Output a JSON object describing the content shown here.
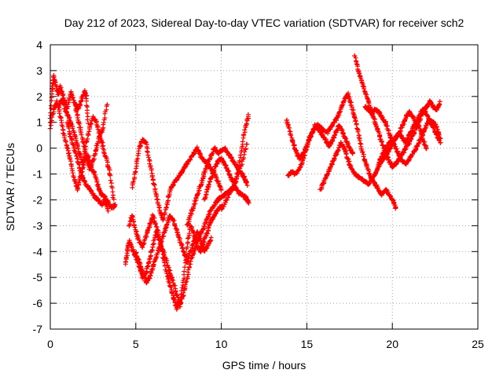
{
  "chart_data": {
    "type": "scatter",
    "title": "Day 212 of 2023, Sidereal Day-to-day VTEC variation (SDTVAR) for receiver sch2",
    "xlabel": "GPS time / hours",
    "ylabel": "SDTVAR / TECUs",
    "xlim": [
      0,
      25
    ],
    "ylim": [
      -7,
      4
    ],
    "xticks": [
      0,
      5,
      10,
      15,
      20,
      25
    ],
    "yticks": [
      -7,
      -6,
      -5,
      -4,
      -3,
      -2,
      -1,
      0,
      1,
      2,
      3,
      4
    ],
    "grid": true,
    "marker": "+",
    "color": "#ff0000",
    "series": [
      {
        "x": [
          0.0,
          0.1,
          0.2,
          0.3,
          0.45,
          0.6,
          0.8,
          1.0,
          1.2,
          1.4,
          1.6,
          1.8,
          2.0,
          2.1,
          2.2
        ],
        "y": [
          1.0,
          2.2,
          2.8,
          2.5,
          2.1,
          2.4,
          1.9,
          1.5,
          2.2,
          1.8,
          1.5,
          1.8,
          2.2,
          2.0,
          1.0
        ]
      },
      {
        "x": [
          0.0,
          0.2,
          0.4,
          0.6,
          0.8,
          1.0,
          1.2,
          1.4,
          1.6,
          1.8,
          2.0,
          2.2,
          2.4,
          2.6,
          2.8,
          3.0,
          3.2,
          3.4,
          3.6,
          3.8
        ],
        "y": [
          0.8,
          1.5,
          1.8,
          1.2,
          0.5,
          0.0,
          -0.5,
          -1.2,
          -1.6,
          -1.0,
          -0.5,
          -0.3,
          -0.8,
          -1.0,
          -1.5,
          -1.8,
          -1.9,
          -2.1,
          -2.3,
          -2.2
        ]
      },
      {
        "x": [
          0.5,
          0.7,
          0.9,
          1.1,
          1.3,
          1.5,
          1.7,
          1.9,
          2.1,
          2.3,
          2.5,
          2.7,
          2.9,
          3.1,
          3.3,
          3.5,
          3.7
        ],
        "y": [
          1.6,
          1.9,
          1.4,
          1.2,
          0.8,
          0.3,
          -0.2,
          -0.6,
          0.2,
          0.8,
          1.2,
          1.0,
          0.5,
          0.0,
          -0.5,
          -1.0,
          -2.0
        ]
      },
      {
        "x": [
          1.0,
          1.2,
          1.4,
          1.6,
          1.8,
          2.0,
          2.2,
          2.4,
          2.6,
          2.8,
          3.0,
          3.2,
          3.4
        ],
        "y": [
          1.0,
          0.4,
          0.0,
          -0.5,
          -1.0,
          -1.3,
          -1.5,
          -1.7,
          -1.9,
          -2.0,
          -2.2,
          -2.0,
          -2.4
        ]
      },
      {
        "x": [
          1.5,
          1.7,
          1.9,
          2.1,
          2.3,
          2.5,
          2.7,
          2.9,
          3.1,
          3.3
        ],
        "y": [
          1.5,
          0.9,
          0.3,
          -0.3,
          -0.8,
          -0.5,
          0.0,
          0.5,
          0.8,
          1.7
        ]
      },
      {
        "x": [
          4.4,
          4.5,
          4.6,
          4.8,
          5.0,
          5.2,
          5.4,
          5.6,
          5.8,
          6.0,
          6.2,
          6.4,
          6.6,
          6.8,
          7.0,
          7.2,
          7.4,
          7.6,
          7.8,
          8.0,
          8.2,
          8.4,
          8.6,
          8.8,
          9.0,
          9.2,
          9.4,
          9.6,
          9.8,
          10.0,
          10.2,
          10.4,
          10.6,
          10.8,
          11.0,
          11.2,
          11.4,
          11.5,
          11.6
        ],
        "y": [
          -4.5,
          -4.0,
          -3.6,
          -3.9,
          -4.2,
          -4.6,
          -5.0,
          -4.8,
          -4.3,
          -3.8,
          -3.2,
          -3.6,
          -4.0,
          -4.4,
          -4.8,
          -5.2,
          -5.7,
          -6.1,
          -5.6,
          -5.0,
          -4.4,
          -4.0,
          -3.6,
          -3.3,
          -3.0,
          -2.7,
          -2.4,
          -2.2,
          -2.0,
          -1.9,
          -1.8,
          -1.7,
          -1.6,
          -1.5,
          -1.7,
          -1.8,
          -1.9,
          -2.0,
          -2.1
        ]
      },
      {
        "x": [
          4.6,
          4.8,
          5.0,
          5.2,
          5.4,
          5.6,
          5.8,
          6.0,
          6.2,
          6.4,
          6.6,
          6.8,
          7.0,
          7.2,
          7.4,
          7.6,
          7.8,
          8.0,
          8.2,
          8.4,
          8.6,
          8.8,
          9.0,
          9.2,
          9.4,
          9.6,
          9.8,
          10.0
        ],
        "y": [
          -3.0,
          -2.6,
          -3.2,
          -3.6,
          -3.8,
          -3.4,
          -3.0,
          -2.6,
          -3.0,
          -3.5,
          -4.2,
          -4.8,
          -5.3,
          -5.8,
          -6.2,
          -5.9,
          -5.0,
          -3.8,
          -3.0,
          -3.3,
          -3.8,
          -4.0,
          -3.6,
          -3.2,
          -2.8,
          -2.6,
          -2.4,
          -2.2
        ]
      },
      {
        "x": [
          4.8,
          5.0,
          5.2,
          5.4,
          5.6,
          5.8,
          6.0,
          6.2,
          6.4,
          6.6,
          6.8,
          7.0,
          7.2,
          7.4,
          7.6,
          7.8,
          8.0,
          8.2,
          8.4,
          8.6,
          8.8,
          9.0,
          9.2,
          9.4,
          9.6,
          9.8,
          10.0
        ],
        "y": [
          -1.5,
          -0.8,
          0.0,
          0.3,
          0.2,
          -0.5,
          -1.2,
          -1.8,
          -2.4,
          -2.8,
          -2.2,
          -1.6,
          -1.4,
          -1.2,
          -1.0,
          -0.8,
          -0.6,
          -0.4,
          -0.2,
          0.0,
          -0.3,
          -0.5,
          -0.6,
          -0.8,
          -1.0,
          -1.3,
          -1.6
        ]
      },
      {
        "x": [
          5.0,
          5.2,
          5.4,
          5.6,
          5.8,
          6.0,
          6.2,
          6.4,
          6.6,
          6.8,
          7.0,
          7.2,
          7.4,
          7.6,
          7.8,
          8.0,
          8.2,
          8.4,
          8.6,
          8.8,
          9.0,
          9.2,
          9.4
        ],
        "y": [
          -4.0,
          -4.4,
          -4.8,
          -5.2,
          -5.0,
          -4.6,
          -4.2,
          -3.8,
          -3.4,
          -3.0,
          -2.6,
          -2.8,
          -3.2,
          -3.6,
          -4.0,
          -4.4,
          -4.0,
          -3.6,
          -3.2,
          -3.6,
          -4.0,
          -3.8,
          -3.5
        ]
      },
      {
        "x": [
          8.0,
          8.2,
          8.4,
          8.6,
          8.8,
          9.0,
          9.2,
          9.4,
          9.6,
          9.8,
          10.0,
          10.2,
          10.4,
          10.6,
          10.8,
          11.0,
          11.2,
          11.4,
          11.5
        ],
        "y": [
          -3.0,
          -2.6,
          -2.2,
          -1.8,
          -1.4,
          -1.0,
          -0.6,
          -0.3,
          0.0,
          -0.2,
          -0.1,
          0.0,
          -0.2,
          -0.4,
          -0.6,
          -0.8,
          -1.0,
          -1.2,
          -1.4
        ]
      },
      {
        "x": [
          9.0,
          9.2,
          9.4,
          9.6,
          9.8,
          10.0,
          10.2,
          10.4,
          10.6,
          10.8,
          11.0,
          11.2,
          11.4,
          11.6
        ],
        "y": [
          -2.0,
          -1.6,
          -1.2,
          -0.8,
          -0.5,
          -0.4,
          -0.6,
          -0.9,
          -1.2,
          -1.4,
          -0.8,
          0.0,
          0.8,
          1.3
        ]
      },
      {
        "x": [
          10.0,
          10.3,
          10.6,
          10.9,
          11.2,
          11.5
        ],
        "y": [
          -2.4,
          -2.0,
          -1.6,
          -1.2,
          -0.6,
          0.2
        ]
      },
      {
        "x": [
          13.8,
          14.0,
          14.2,
          14.4,
          14.6,
          14.8,
          15.0,
          15.2,
          15.4,
          15.6,
          15.8,
          16.0,
          16.2,
          16.4,
          16.6,
          16.8,
          17.0,
          17.2,
          17.4,
          17.6,
          17.8,
          18.0,
          18.2,
          18.4,
          18.6,
          18.8,
          19.0,
          19.2,
          19.4,
          19.6,
          19.8,
          20.0,
          20.2
        ],
        "y": [
          1.1,
          0.7,
          0.2,
          -0.2,
          -0.4,
          -0.2,
          0.1,
          0.4,
          0.7,
          0.9,
          0.8,
          0.7,
          0.6,
          0.8,
          1.0,
          1.2,
          1.5,
          1.9,
          2.1,
          1.7,
          1.2,
          0.6,
          0.0,
          -0.5,
          -0.9,
          -1.2,
          -1.4,
          -1.6,
          -1.8,
          -1.6,
          -1.8,
          -2.0,
          -2.3
        ]
      },
      {
        "x": [
          13.9,
          14.1,
          14.3,
          14.5,
          14.7,
          14.9,
          15.1,
          15.3,
          15.5,
          15.7,
          15.9,
          16.1,
          16.3,
          16.5,
          16.7,
          16.9,
          17.1,
          17.3,
          17.5,
          17.7
        ],
        "y": [
          -1.1,
          -0.9,
          -1.0,
          -0.9,
          -0.6,
          -0.2,
          0.3,
          0.6,
          0.9,
          0.7,
          0.5,
          0.3,
          0.1,
          0.3,
          0.6,
          0.9,
          0.6,
          0.3,
          0.0,
          -0.2
        ]
      },
      {
        "x": [
          15.8,
          16.0,
          16.2,
          16.4,
          16.6,
          16.8,
          17.0,
          17.2,
          17.4,
          17.6,
          17.8,
          18.0,
          18.2,
          18.4,
          18.6,
          18.8,
          19.0,
          19.2,
          19.4,
          19.6,
          19.8,
          20.0,
          20.2,
          20.4,
          20.6,
          20.8,
          21.0,
          21.2,
          21.4,
          21.6,
          21.8,
          22.0,
          22.2,
          22.4,
          22.6,
          22.8
        ],
        "y": [
          -1.6,
          -1.3,
          -1.0,
          -0.7,
          -0.4,
          -0.1,
          0.2,
          0.0,
          -0.4,
          -0.8,
          -1.0,
          -1.1,
          -1.2,
          -1.3,
          -1.4,
          -1.2,
          -1.0,
          -0.7,
          -0.5,
          -0.3,
          -0.1,
          0.2,
          0.4,
          0.6,
          0.9,
          1.2,
          1.4,
          1.2,
          1.0,
          1.3,
          1.5,
          1.3,
          1.0,
          0.8,
          0.5,
          0.2
        ]
      },
      {
        "x": [
          17.8,
          18.0,
          18.2,
          18.4,
          18.6,
          18.8,
          19.0,
          19.2,
          19.4,
          19.6,
          19.8,
          20.0,
          20.2,
          20.4,
          20.6,
          20.8,
          21.0,
          21.2,
          21.4,
          21.6,
          21.8,
          22.0,
          22.2,
          22.4,
          22.6,
          22.8
        ],
        "y": [
          3.6,
          3.0,
          2.6,
          2.2,
          1.8,
          1.4,
          1.0,
          0.6,
          0.2,
          -0.2,
          -0.5,
          -0.7,
          -0.6,
          -0.4,
          -0.2,
          0.0,
          0.2,
          0.5,
          0.8,
          1.1,
          1.4,
          1.6,
          1.8,
          1.6,
          1.5,
          1.8
        ]
      },
      {
        "x": [
          18.4,
          18.6,
          18.8,
          19.0,
          19.2,
          19.4,
          19.6,
          19.8,
          20.0,
          20.2,
          20.4,
          20.6,
          20.8,
          21.0,
          21.2,
          21.4,
          21.6,
          21.8,
          22.0
        ],
        "y": [
          1.6,
          1.5,
          1.3,
          1.5,
          1.4,
          1.2,
          1.0,
          0.6,
          0.2,
          0.4,
          0.6,
          0.4,
          0.2,
          0.5,
          0.8,
          1.0,
          0.8,
          0.3,
          0.0
        ]
      },
      {
        "x": [
          19.2,
          19.4,
          19.6,
          19.8,
          20.0,
          20.2,
          20.4,
          20.6,
          20.8,
          21.0,
          21.2,
          21.4,
          21.6,
          21.8,
          22.0,
          22.2,
          22.4,
          22.6,
          22.8
        ],
        "y": [
          -0.6,
          -0.3,
          0.0,
          0.2,
          0.3,
          0.0,
          -0.3,
          -0.5,
          -0.6,
          -0.4,
          -0.2,
          0.0,
          0.3,
          0.6,
          0.9,
          1.1,
          1.0,
          0.8,
          0.4
        ]
      }
    ]
  }
}
